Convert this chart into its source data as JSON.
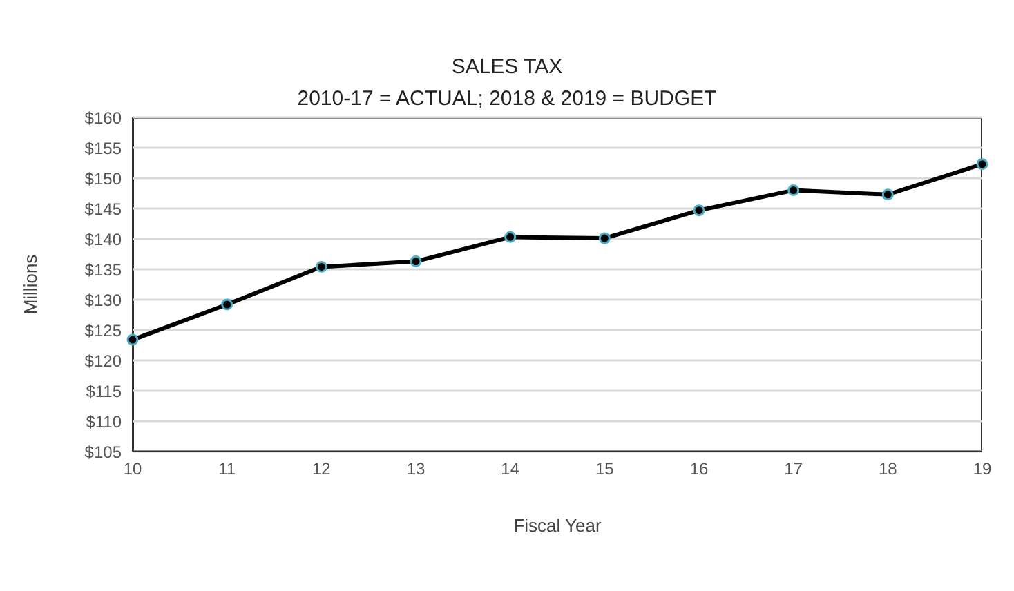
{
  "chart_data": {
    "type": "line",
    "title": "SALES TAX",
    "subtitle": "2010-17 = ACTUAL; 2018 & 2019 = BUDGET",
    "xlabel": "Fiscal Year",
    "ylabel": "Millions",
    "categories": [
      "10",
      "11",
      "12",
      "13",
      "14",
      "15",
      "16",
      "17",
      "18",
      "19"
    ],
    "series": [
      {
        "color": "#000000",
        "values": [
          123.4,
          129.2,
          135.4,
          136.3,
          140.3,
          140.1,
          144.7,
          148.0,
          147.3,
          152.3
        ]
      }
    ],
    "ylim": [
      105,
      160
    ],
    "yticks": [
      {
        "value": 105,
        "label": "$105"
      },
      {
        "value": 110,
        "label": "$110"
      },
      {
        "value": 115,
        "label": "$115"
      },
      {
        "value": 120,
        "label": "$120"
      },
      {
        "value": 125,
        "label": "$125"
      },
      {
        "value": 130,
        "label": "$130"
      },
      {
        "value": 135,
        "label": "$135"
      },
      {
        "value": 140,
        "label": "$140"
      },
      {
        "value": 145,
        "label": "$145"
      },
      {
        "value": 150,
        "label": "$150"
      },
      {
        "value": 155,
        "label": "$155"
      },
      {
        "value": 160,
        "label": "$160"
      }
    ],
    "grid": "y",
    "legend": false,
    "marker": "circle",
    "line_style": "solid"
  }
}
